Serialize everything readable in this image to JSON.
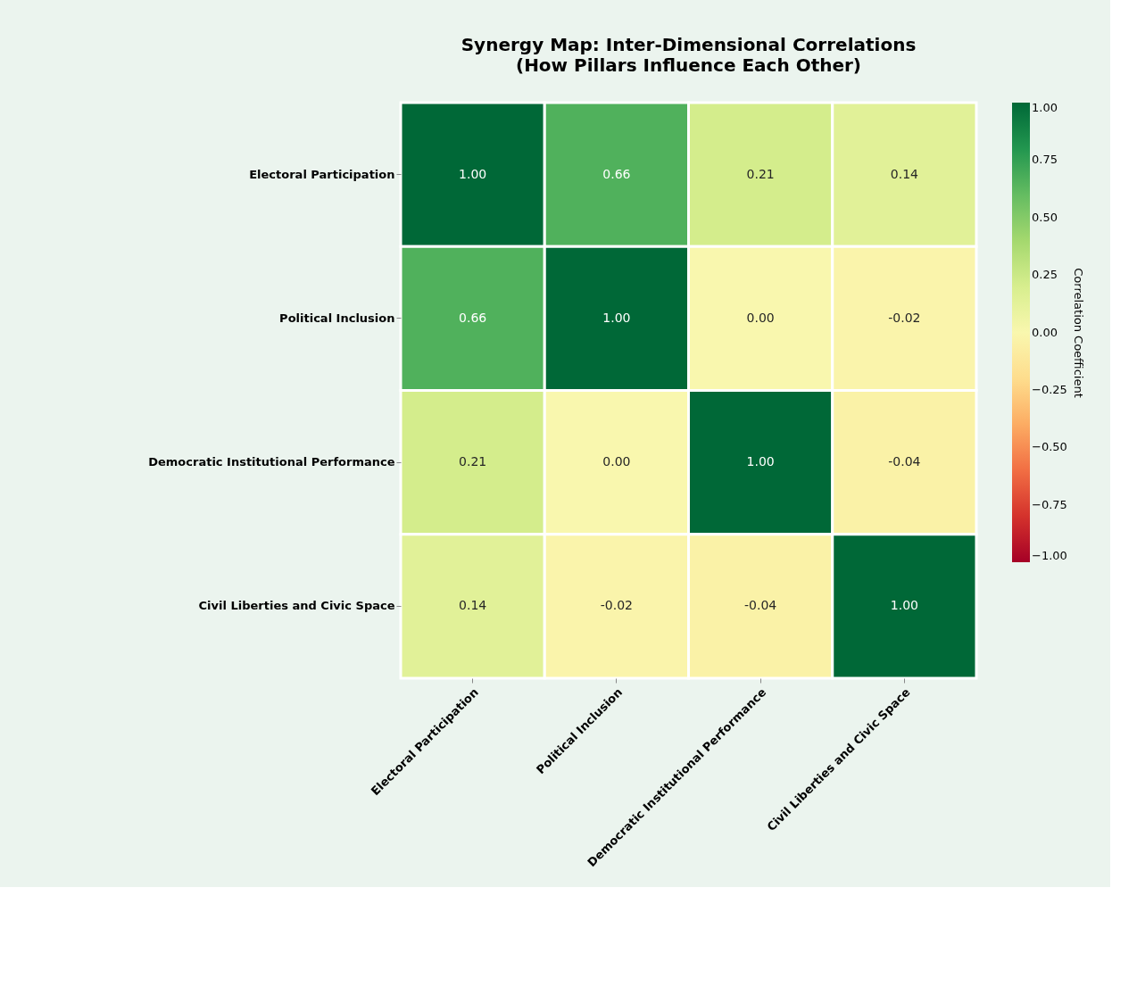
{
  "chart_data": {
    "type": "heatmap",
    "title": "Synergy Map: Inter-Dimensional Correlations",
    "subtitle": "(How Pillars Influence Each Other)",
    "categories": [
      "Electoral Participation",
      "Political Inclusion",
      "Democratic Institutional Performance",
      "Civil Liberties and Civic Space"
    ],
    "y_categories": [
      "Electoral Participation",
      "Political Inclusion",
      "Democratic Institutional Performance",
      "Civil Liberties and Civic Space"
    ],
    "cells": [
      [
        1.0,
        0.66,
        0.21,
        0.14
      ],
      [
        0.66,
        1.0,
        0.0,
        -0.02
      ],
      [
        0.21,
        0.0,
        1.0,
        -0.04
      ],
      [
        0.14,
        -0.02,
        -0.04,
        1.0
      ]
    ],
    "cell_labels": [
      [
        "1.00",
        "0.66",
        "0.21",
        "0.14"
      ],
      [
        "0.66",
        "1.00",
        "0.00",
        "-0.02"
      ],
      [
        "0.21",
        "0.00",
        "1.00",
        "-0.04"
      ],
      [
        "0.14",
        "-0.02",
        "-0.04",
        "1.00"
      ]
    ],
    "clabel": "Correlation Coefficient",
    "clim": [
      -1,
      1
    ],
    "cticks": [
      {
        "value": 1,
        "label": "1.00"
      },
      {
        "value": 0.75,
        "label": "0.75"
      },
      {
        "value": 0.5,
        "label": "0.50"
      },
      {
        "value": 0.25,
        "label": "0.25"
      },
      {
        "value": 0,
        "label": "0.00"
      },
      {
        "value": -0.25,
        "label": "−0.25"
      },
      {
        "value": -0.5,
        "label": "−0.50"
      },
      {
        "value": -0.75,
        "label": "−0.75"
      },
      {
        "value": -1,
        "label": "−1.00"
      }
    ]
  }
}
